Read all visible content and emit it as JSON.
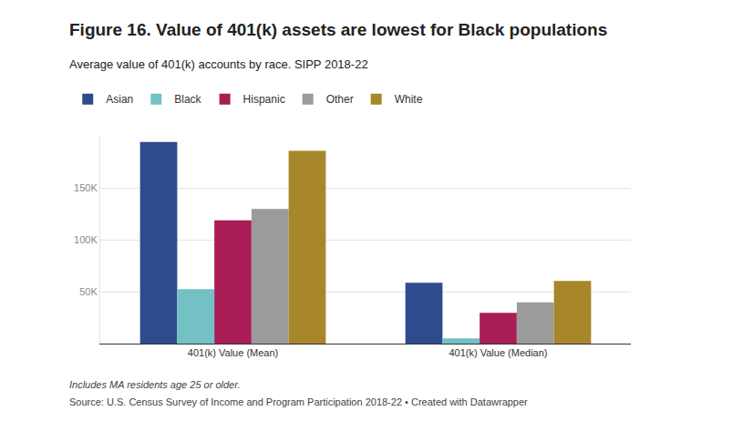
{
  "chart_data": {
    "type": "bar",
    "title": "Figure 16. Value of 401(k) assets are lowest for Black populations",
    "subtitle": "Average value of 401(k) accounts by race. SIPP 2018-22",
    "notes": [
      "Includes MA residents age 25 or older.",
      "Source: U.S. Census Survey of Income and Program Participation 2018-22 • Created with Datawrapper"
    ],
    "categories": [
      "401(k) Value (Mean)",
      "401(k) Value (Median)"
    ],
    "series": [
      {
        "name": "Asian",
        "color": "#2f4b8f",
        "values": [
          194000,
          58500
        ]
      },
      {
        "name": "Black",
        "color": "#73c1c4",
        "values": [
          52500,
          5000
        ]
      },
      {
        "name": "Hispanic",
        "color": "#a81d56",
        "values": [
          118600,
          29700
        ]
      },
      {
        "name": "Other",
        "color": "#9b9b9b",
        "values": [
          129700,
          39800
        ]
      },
      {
        "name": "White",
        "color": "#a8862a",
        "values": [
          185600,
          60200
        ]
      }
    ],
    "ylim": [
      0,
      200000
    ],
    "yticks": [
      {
        "value": 50000,
        "label": "50K"
      },
      {
        "value": 100000,
        "label": "100K"
      },
      {
        "value": 150000,
        "label": "150K"
      }
    ],
    "grid": true,
    "legend": "top-left"
  }
}
